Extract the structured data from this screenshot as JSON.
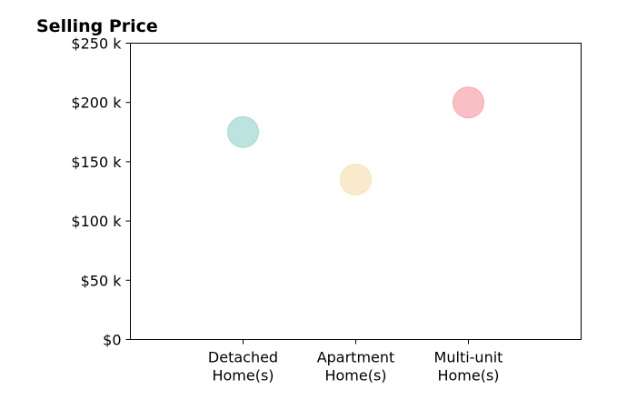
{
  "chart_data": {
    "type": "scatter",
    "title": "Selling Price",
    "xlabel": "",
    "ylabel": "",
    "categories": [
      "Detached Home(s)",
      "Apartment Home(s)",
      "Multi-unit Home(s)"
    ],
    "category_lines": [
      [
        "Detached",
        "Home(s)"
      ],
      [
        "Apartment",
        "Home(s)"
      ],
      [
        "Multi-unit",
        "Home(s)"
      ]
    ],
    "values": [
      175000,
      135000,
      200000
    ],
    "colors": [
      "#a6d9d3",
      "#f7e3bb",
      "#f6a9b1"
    ],
    "ylim": [
      0,
      250000
    ],
    "yticks": [
      0,
      50000,
      100000,
      150000,
      200000,
      250000
    ],
    "ytick_labels": [
      "$0",
      "$50 k",
      "$100 k",
      "$150 k",
      "$200 k",
      "$250 k"
    ],
    "grid": false,
    "legend": "none"
  }
}
